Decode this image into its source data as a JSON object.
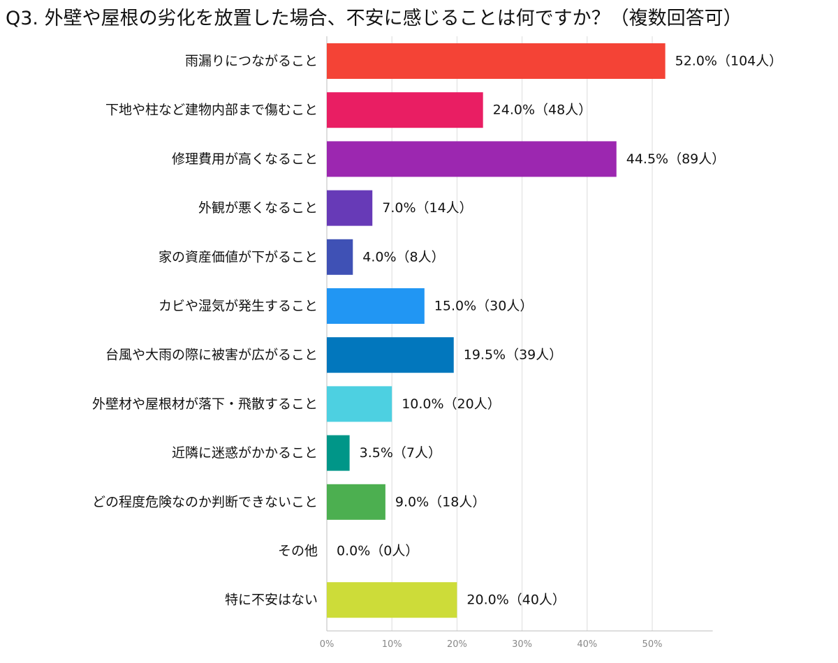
{
  "chart_data": {
    "type": "bar",
    "orientation": "horizontal",
    "title": "Q3. 外壁や屋根の劣化を放置した場合、不安に感じることは何ですか？（複数回答可）",
    "categories": [
      "雨漏りにつながること",
      "下地や柱など建物内部まで傷むこと",
      "修理費用が高くなること",
      "外観が悪くなること",
      "家の資産価値が下がること",
      "カビや湿気が発生すること",
      "台風や大雨の際に被害が広がること",
      "外壁材や屋根材が落下・飛散すること",
      "近隣に迷惑がかかること",
      "どの程度危険なのか判断できないこと",
      "その他",
      "特に不安はない"
    ],
    "values": [
      52.0,
      24.0,
      44.5,
      7.0,
      4.0,
      15.0,
      19.5,
      10.0,
      3.5,
      9.0,
      0.0,
      20.0
    ],
    "data_labels": [
      "52.0%（104人）",
      "24.0%（48人）",
      "44.5%（89人）",
      "7.0%（14人）",
      "4.0%（8人）",
      "15.0%（30人）",
      "19.5%（39人）",
      "10.0%（20人）",
      "3.5%（7人）",
      "9.0%（18人）",
      "0.0%（0人）",
      "20.0%（40人）"
    ],
    "colors": [
      "#f44336",
      "#e91e63",
      "#9c27b0",
      "#673ab7",
      "#3f51b5",
      "#2196f3",
      "#0277bd",
      "#4dd0e1",
      "#009688",
      "#4caf50",
      "#9e9e9e",
      "#cddc39"
    ],
    "xlim": [
      0,
      55
    ],
    "ticks": [
      0,
      10,
      20,
      30,
      40,
      50
    ],
    "tick_labels": [
      "0%",
      "10%",
      "20%",
      "30%",
      "40%",
      "50%"
    ],
    "grid": true,
    "legend": "none"
  }
}
